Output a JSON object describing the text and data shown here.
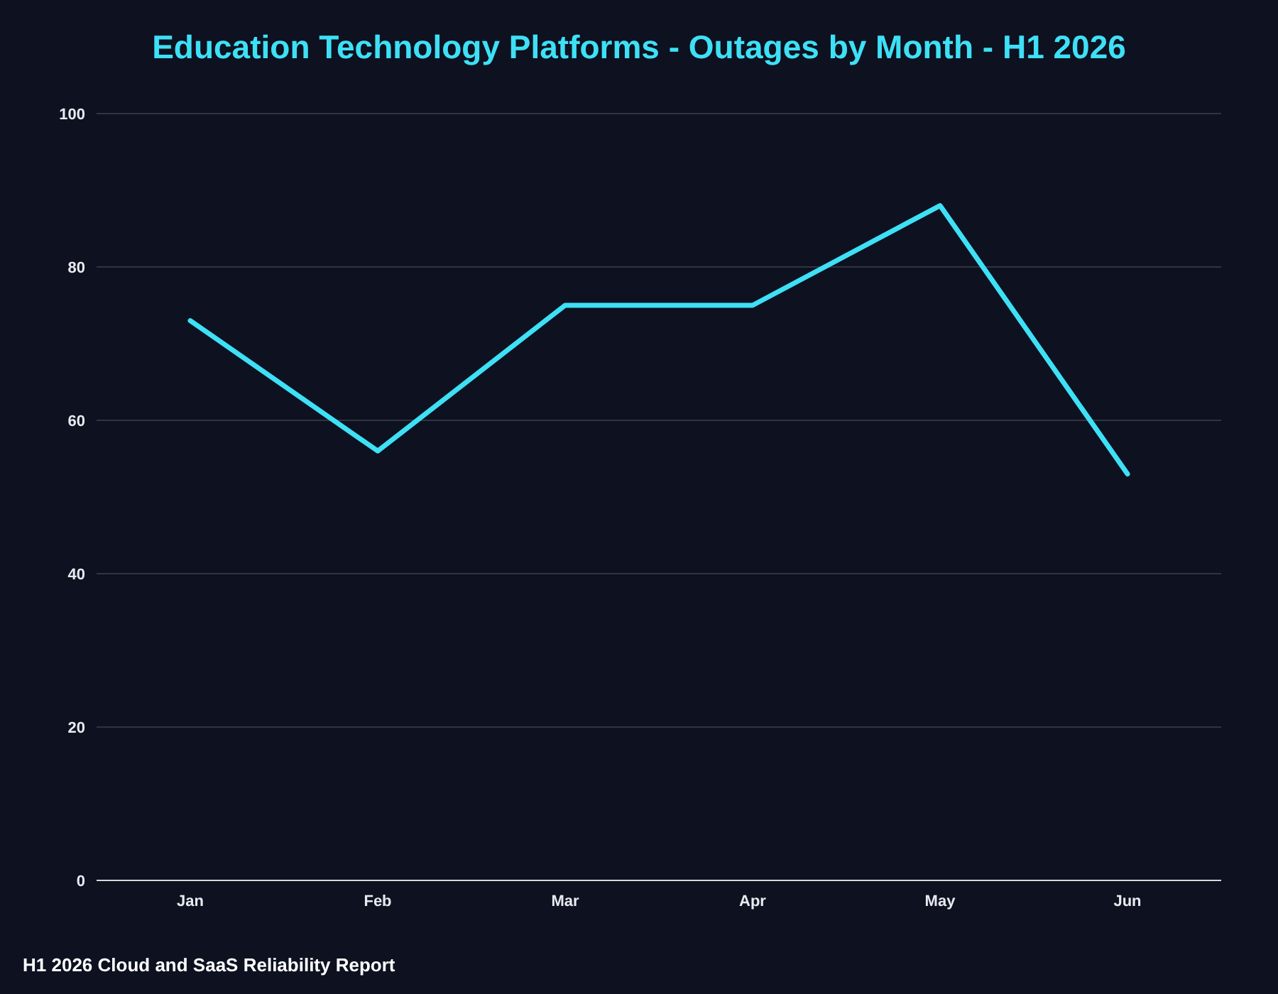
{
  "chart_data": {
    "type": "line",
    "title": "Education Technology Platforms - Outages by Month - H1 2026",
    "categories": [
      "Jan",
      "Feb",
      "Mar",
      "Apr",
      "May",
      "Jun"
    ],
    "series": [
      {
        "color": "#3ee0f5",
        "values": [
          73,
          56,
          75,
          75,
          88,
          53
        ]
      }
    ],
    "ylim": [
      0,
      100
    ],
    "yticks": [
      0,
      20,
      40,
      60,
      80,
      100
    ],
    "grid": "y",
    "marker": "none",
    "line_style": "solid",
    "annotations": [
      "H1 2026 Cloud and SaaS Reliability Report"
    ]
  }
}
